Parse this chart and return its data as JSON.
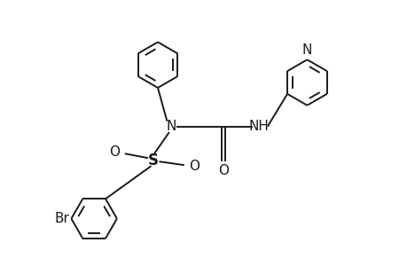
{
  "background_color": "#ffffff",
  "line_color": "#1a1a1a",
  "line_width": 1.4,
  "figsize": [
    4.6,
    3.0
  ],
  "dpi": 100,
  "xlim": [
    0,
    9.2
  ],
  "ylim": [
    0,
    6.0
  ]
}
